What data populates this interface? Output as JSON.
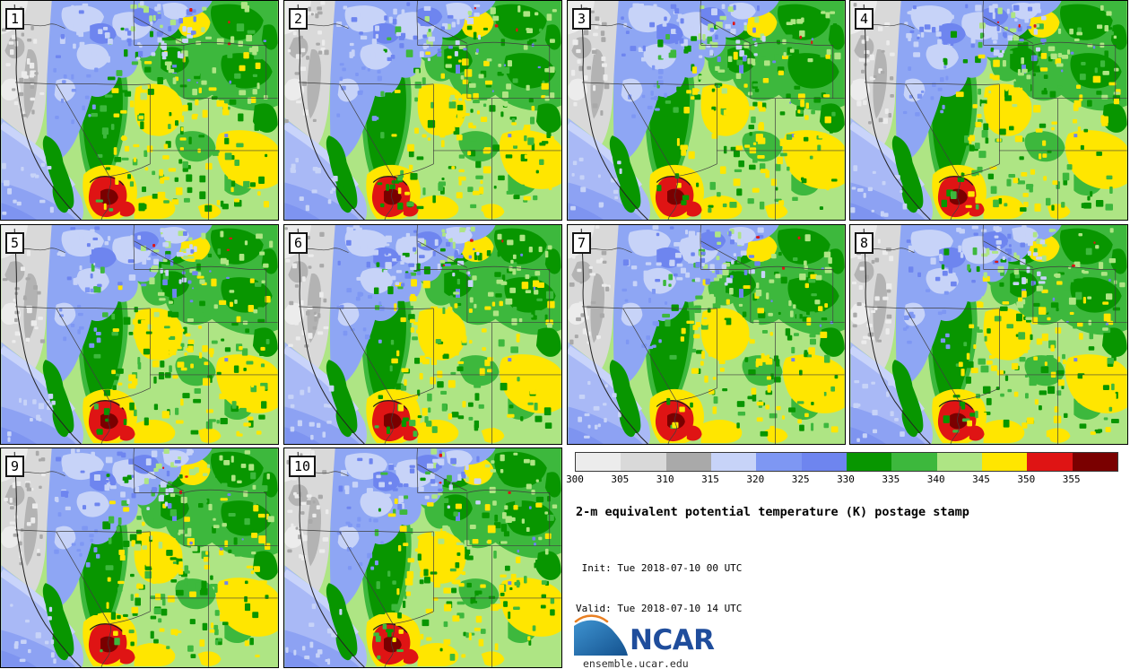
{
  "panels": [
    {
      "label": "1"
    },
    {
      "label": "2"
    },
    {
      "label": "3"
    },
    {
      "label": "4"
    },
    {
      "label": "5"
    },
    {
      "label": "6"
    },
    {
      "label": "7"
    },
    {
      "label": "8"
    },
    {
      "label": "9"
    },
    {
      "label": "10"
    }
  ],
  "legend": {
    "title": "2-m equivalent potential temperature (K) postage stamp",
    "init_label": " Init: Tue 2018-07-10 00 UTC",
    "valid_label": "Valid: Tue 2018-07-10 14 UTC",
    "ticks": [
      "300",
      "305",
      "310",
      "315",
      "320",
      "325",
      "330",
      "335",
      "340",
      "345",
      "350",
      "355"
    ],
    "colors": [
      "#ececec",
      "#d9d9d9",
      "#a9a9a9",
      "#c7d3f8",
      "#7e97f3",
      "#6e85ef",
      "#089600",
      "#3db83d",
      "#aee584",
      "#ffe600",
      "#df1414",
      "#7a0000"
    ]
  },
  "branding": {
    "org": "NCAR",
    "site": "ensemble.ucar.edu",
    "wordmark_color": "#1f4d9c",
    "swoosh_blue_light": "#3e93d0",
    "swoosh_blue_dark": "#14528f",
    "swoosh_orange": "#e87f22"
  },
  "chart_data": {
    "type": "heatmap",
    "layout": "postage-stamp-grid",
    "title": "2-m equivalent potential temperature (K) postage stamp",
    "variable": "2-m equivalent potential temperature",
    "units": "K",
    "init": "Tue 2018-07-10 00 UTC",
    "valid": "Tue 2018-07-10 14 UTC",
    "members": [
      "1",
      "2",
      "3",
      "4",
      "5",
      "6",
      "7",
      "8",
      "9",
      "10"
    ],
    "grid": {
      "rows": 3,
      "cols": 4
    },
    "levels": [
      300,
      305,
      310,
      315,
      320,
      325,
      330,
      335,
      340,
      345,
      350,
      355,
      360
    ],
    "palette": [
      "#ececec",
      "#d9d9d9",
      "#a9a9a9",
      "#c7d3f8",
      "#7e97f3",
      "#6e85ef",
      "#089600",
      "#3db83d",
      "#aee584",
      "#ffe600",
      "#df1414",
      "#7a0000"
    ],
    "region_depicted": "Western United States (Pacific coast to Rockies)",
    "legend_position": "bottom-right"
  }
}
